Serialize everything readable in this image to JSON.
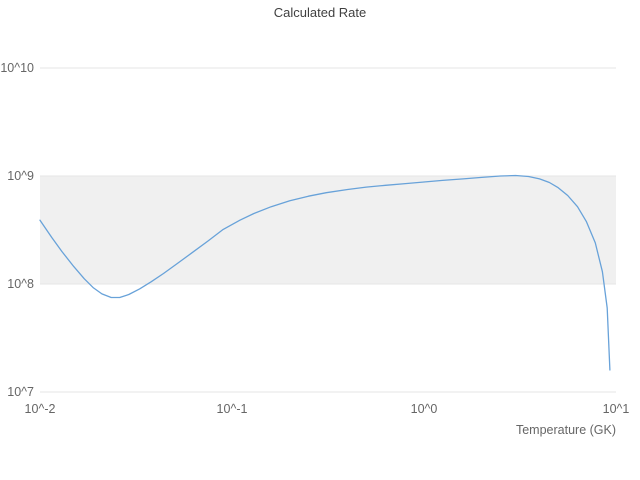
{
  "chart_data": {
    "type": "line",
    "title": "Calculated Rate",
    "xlabel": "Temperature (GK)",
    "ylabel": "",
    "x_scale": "log",
    "y_scale": "log",
    "xlim": [
      0.01,
      10
    ],
    "ylim": [
      10000000.0,
      10000000000.0
    ],
    "x_tick_values": [
      0.01,
      0.1,
      1,
      10
    ],
    "x_tick_labels": [
      "10^-2",
      "10^-1",
      "10^0",
      "10^1"
    ],
    "y_tick_values": [
      10000000.0,
      100000000.0,
      1000000000.0,
      10000000000.0
    ],
    "y_tick_labels": [
      "10^7",
      "10^8",
      "10^9",
      "10^10"
    ],
    "grid": true,
    "grid_color": "#e6e6e6",
    "band": {
      "from": 100000000.0,
      "to": 1000000000.0,
      "color": "#f0f0f0"
    },
    "line_color": "#68a2d9",
    "legend": "none",
    "series": [
      {
        "name": "Calculated Rate",
        "points": [
          [
            0.01,
            390000000.0
          ],
          [
            0.0115,
            270000000.0
          ],
          [
            0.013,
            200000000.0
          ],
          [
            0.015,
            145000000.0
          ],
          [
            0.017,
            112000000.0
          ],
          [
            0.019,
            92000000.0
          ],
          [
            0.021,
            81000000.0
          ],
          [
            0.0235,
            75000000.0
          ],
          [
            0.026,
            75000000.0
          ],
          [
            0.029,
            80000000.0
          ],
          [
            0.033,
            90000000.0
          ],
          [
            0.038,
            105000000.0
          ],
          [
            0.044,
            125000000.0
          ],
          [
            0.052,
            155000000.0
          ],
          [
            0.062,
            195000000.0
          ],
          [
            0.075,
            250000000.0
          ],
          [
            0.09,
            320000000.0
          ],
          [
            0.11,
            390000000.0
          ],
          [
            0.13,
            450000000.0
          ],
          [
            0.16,
            520000000.0
          ],
          [
            0.2,
            590000000.0
          ],
          [
            0.25,
            650000000.0
          ],
          [
            0.31,
            700000000.0
          ],
          [
            0.4,
            750000000.0
          ],
          [
            0.5,
            790000000.0
          ],
          [
            0.63,
            820000000.0
          ],
          [
            0.8,
            850000000.0
          ],
          [
            1.0,
            880000000.0
          ],
          [
            1.25,
            910000000.0
          ],
          [
            1.6,
            940000000.0
          ],
          [
            2.0,
            970000000.0
          ],
          [
            2.5,
            1000000000.0
          ],
          [
            3.0,
            1010000000.0
          ],
          [
            3.5,
            990000000.0
          ],
          [
            4.0,
            940000000.0
          ],
          [
            4.5,
            870000000.0
          ],
          [
            5.0,
            780000000.0
          ],
          [
            5.6,
            660000000.0
          ],
          [
            6.3,
            520000000.0
          ],
          [
            7.0,
            380000000.0
          ],
          [
            7.8,
            240000000.0
          ],
          [
            8.5,
            130000000.0
          ],
          [
            9.0,
            60000000.0
          ],
          [
            9.3,
            16000000.0
          ]
        ]
      }
    ]
  }
}
